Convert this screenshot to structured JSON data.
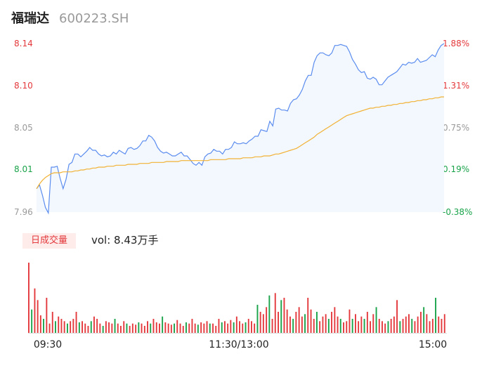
{
  "header": {
    "name": "福瑞达",
    "code": "600223.SH"
  },
  "volume": {
    "tab_label": "日成交量",
    "vol_label": "vol: 8.43万手"
  },
  "colors": {
    "price_line": "#5b8def",
    "avg_line": "#f2b233",
    "up": "#e4393c",
    "down": "#1aa34a",
    "neutral": "#999999"
  },
  "chart_data": {
    "type": "line",
    "ylim": [
      7.96,
      8.14
    ],
    "price_ticks": [
      "8.14",
      "8.10",
      "8.05",
      "8.01",
      "7.96"
    ],
    "pct_ticks": [
      "1.88%",
      "1.31%",
      "0.75%",
      "0.19%",
      "-0.38%"
    ],
    "x_ticks": [
      "09:30",
      "11:30/13:00",
      "15:00"
    ],
    "price": [
      7.985,
      7.989,
      7.978,
      7.965,
      7.959,
      8.008,
      8.008,
      8.009,
      7.996,
      7.985,
      7.995,
      8.011,
      8.013,
      8.022,
      8.022,
      8.019,
      8.022,
      8.025,
      8.029,
      8.026,
      8.026,
      8.022,
      8.02,
      8.021,
      8.019,
      8.02,
      8.024,
      8.022,
      8.026,
      8.024,
      8.022,
      8.028,
      8.029,
      8.027,
      8.028,
      8.031,
      8.036,
      8.036,
      8.042,
      8.04,
      8.036,
      8.029,
      8.025,
      8.023,
      8.024,
      8.022,
      8.02,
      8.02,
      8.022,
      8.024,
      8.02,
      8.02,
      8.016,
      8.012,
      8.01,
      8.013,
      8.01,
      8.019,
      8.022,
      8.023,
      8.027,
      8.025,
      8.025,
      8.022,
      8.027,
      8.027,
      8.029,
      8.035,
      8.033,
      8.033,
      8.034,
      8.033,
      8.036,
      8.038,
      8.041,
      8.041,
      8.048,
      8.047,
      8.046,
      8.057,
      8.052,
      8.07,
      8.071,
      8.069,
      8.069,
      8.068,
      8.076,
      8.08,
      8.081,
      8.085,
      8.091,
      8.1,
      8.106,
      8.106,
      8.12,
      8.127,
      8.13,
      8.13,
      8.128,
      8.127,
      8.13,
      8.138,
      8.138,
      8.139,
      8.138,
      8.137,
      8.131,
      8.123,
      8.118,
      8.112,
      8.109,
      8.11,
      8.103,
      8.102,
      8.104,
      8.102,
      8.096,
      8.096,
      8.1,
      8.104,
      8.106,
      8.108,
      8.11,
      8.114,
      8.118,
      8.117,
      8.12,
      8.119,
      8.12,
      8.124,
      8.12,
      8.121,
      8.122,
      8.125,
      8.128,
      8.126,
      8.133,
      8.138,
      8.14
    ],
    "avg": [
      7.985,
      7.99,
      7.994,
      7.997,
      7.999,
      8.001,
      8.002,
      8.002,
      8.002,
      8.003,
      8.003,
      8.003,
      8.003,
      8.004,
      8.004,
      8.005,
      8.005,
      8.006,
      8.006,
      8.007,
      8.007,
      8.008,
      8.008,
      8.008,
      8.009,
      8.009,
      8.009,
      8.01,
      8.01,
      8.01,
      8.01,
      8.011,
      8.011,
      8.011,
      8.011,
      8.012,
      8.012,
      8.012,
      8.012,
      8.013,
      8.013,
      8.013,
      8.013,
      8.013,
      8.014,
      8.014,
      8.014,
      8.014,
      8.014,
      8.015,
      8.015,
      8.015,
      8.015,
      8.015,
      8.015,
      8.015,
      8.015,
      8.015,
      8.015,
      8.016,
      8.016,
      8.016,
      8.016,
      8.016,
      8.016,
      8.017,
      8.017,
      8.017,
      8.017,
      8.017,
      8.018,
      8.018,
      8.018,
      8.018,
      8.019,
      8.019,
      8.019,
      8.02,
      8.02,
      8.02,
      8.021,
      8.022,
      8.022,
      8.023,
      8.024,
      8.025,
      8.026,
      8.027,
      8.028,
      8.03,
      8.032,
      8.034,
      8.036,
      8.038,
      8.04,
      8.043,
      8.045,
      8.047,
      8.049,
      8.051,
      8.053,
      8.055,
      8.057,
      8.059,
      8.061,
      8.063,
      8.064,
      8.065,
      8.066,
      8.067,
      8.068,
      8.069,
      8.07,
      8.071,
      8.071,
      8.072,
      8.072,
      8.073,
      8.073,
      8.074,
      8.074,
      8.075,
      8.075,
      8.076,
      8.076,
      8.077,
      8.077,
      8.078,
      8.078,
      8.079,
      8.079,
      8.08,
      8.08,
      8.081,
      8.081,
      8.082,
      8.082,
      8.083,
      8.083
    ],
    "volume": [
      60,
      20,
      38,
      28,
      15,
      12,
      30,
      8,
      18,
      10,
      14,
      12,
      10,
      8,
      10,
      12,
      18,
      9,
      10,
      8,
      6,
      10,
      14,
      12,
      8,
      6,
      10,
      9,
      8,
      12,
      8,
      6,
      10,
      8,
      6,
      8,
      7,
      9,
      8,
      6,
      10,
      8,
      12,
      9,
      8,
      14,
      9,
      8,
      7,
      8,
      11,
      8,
      6,
      9,
      8,
      12,
      8,
      7,
      9,
      8,
      10,
      8,
      8,
      6,
      12,
      9,
      10,
      8,
      11,
      9,
      14,
      10,
      8,
      9,
      12,
      10,
      8,
      24,
      18,
      16,
      22,
      32,
      12,
      34,
      18,
      28,
      30,
      20,
      14,
      12,
      18,
      22,
      14,
      16,
      30,
      20,
      12,
      18,
      10,
      14,
      16,
      12,
      18,
      22,
      14,
      12,
      9,
      10,
      20,
      12,
      16,
      10,
      14,
      12,
      18,
      10,
      16,
      22,
      12,
      10,
      8,
      10,
      12,
      14,
      28,
      10,
      12,
      14,
      16,
      12,
      10,
      14,
      18,
      22,
      16,
      10,
      12,
      30,
      14,
      12,
      16
    ]
  }
}
